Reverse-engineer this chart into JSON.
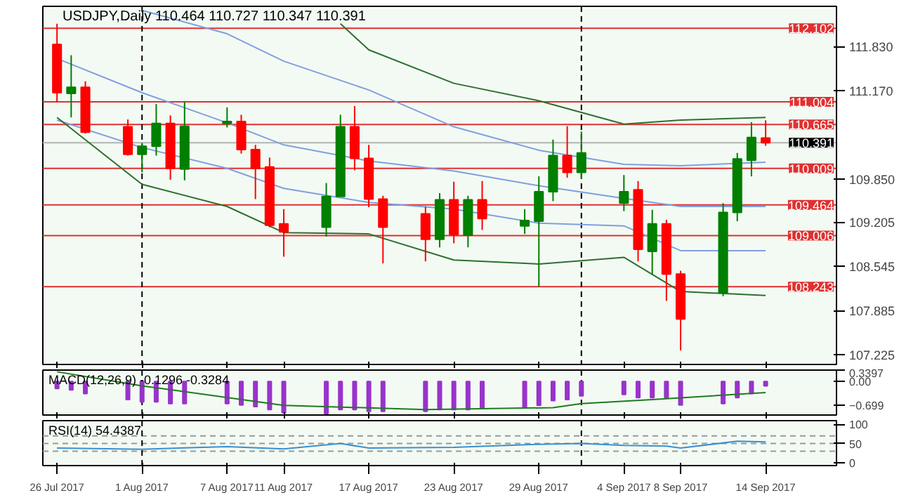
{
  "chart_data": [
    {
      "type": "candlestick",
      "title": "USDJPY,Daily 110.464 110.727 110.347 110.391",
      "x": [
        "2017-07-26",
        "2017-07-27",
        "2017-07-28",
        "2017-07-31",
        "2017-08-01",
        "2017-08-02",
        "2017-08-03",
        "2017-08-04",
        "2017-08-07",
        "2017-08-08",
        "2017-08-09",
        "2017-08-10",
        "2017-08-11",
        "2017-08-14",
        "2017-08-15",
        "2017-08-16",
        "2017-08-17",
        "2017-08-18",
        "2017-08-21",
        "2017-08-22",
        "2017-08-23",
        "2017-08-24",
        "2017-08-25",
        "2017-08-28",
        "2017-08-29",
        "2017-08-30",
        "2017-08-31",
        "2017-09-01",
        "2017-09-04",
        "2017-09-05",
        "2017-09-06",
        "2017-09-07",
        "2017-09-08",
        "2017-09-11",
        "2017-09-12",
        "2017-09-13",
        "2017-09-14"
      ],
      "ohlc": [
        [
          111.86,
          112.17,
          111.0,
          111.14
        ],
        [
          111.13,
          111.7,
          110.77,
          111.22
        ],
        [
          111.22,
          111.31,
          110.53,
          110.55
        ],
        [
          110.63,
          110.74,
          110.2,
          110.22
        ],
        [
          110.22,
          110.39,
          109.95,
          110.34
        ],
        [
          110.34,
          110.97,
          110.2,
          110.68
        ],
        [
          110.68,
          110.8,
          109.84,
          110.01
        ],
        [
          110.0,
          111.0,
          109.83,
          110.64
        ],
        [
          110.68,
          110.92,
          110.62,
          110.71
        ],
        [
          110.71,
          110.81,
          110.23,
          110.29
        ],
        [
          110.29,
          110.36,
          109.55,
          110.01
        ],
        [
          110.03,
          110.17,
          109.13,
          109.16
        ],
        [
          109.18,
          109.4,
          108.69,
          109.06
        ],
        [
          109.13,
          109.79,
          108.99,
          109.59
        ],
        [
          109.59,
          110.81,
          109.59,
          110.63
        ],
        [
          110.63,
          110.94,
          109.98,
          110.16
        ],
        [
          110.16,
          110.36,
          109.43,
          109.55
        ],
        [
          109.55,
          109.6,
          108.59,
          109.13
        ],
        [
          109.33,
          109.44,
          108.62,
          108.95
        ],
        [
          108.95,
          109.64,
          108.83,
          109.54
        ],
        [
          109.54,
          109.81,
          108.89,
          109.02
        ],
        [
          109.01,
          109.6,
          108.83,
          109.54
        ],
        [
          109.54,
          109.82,
          109.09,
          109.26
        ],
        [
          109.15,
          109.4,
          109.03,
          109.23
        ],
        [
          109.22,
          109.89,
          108.24,
          109.66
        ],
        [
          109.66,
          110.44,
          109.52,
          110.2
        ],
        [
          110.2,
          110.64,
          109.87,
          109.95
        ],
        [
          109.95,
          110.56,
          109.85,
          110.24
        ],
        [
          109.49,
          109.91,
          109.37,
          109.66
        ],
        [
          109.69,
          109.82,
          108.62,
          108.8
        ],
        [
          108.77,
          109.39,
          108.43,
          109.18
        ],
        [
          109.18,
          109.24,
          108.03,
          108.43
        ],
        [
          108.43,
          108.48,
          107.29,
          107.76
        ],
        [
          108.15,
          109.49,
          108.1,
          109.35
        ],
        [
          109.35,
          110.24,
          109.22,
          110.15
        ],
        [
          110.13,
          110.7,
          109.89,
          110.47
        ],
        [
          110.464,
          110.727,
          110.347,
          110.391
        ]
      ],
      "colors": [
        "#ff0000",
        "#007f00",
        "#ff0000",
        "#ff0000",
        "#007f00",
        "#007f00",
        "#ff0000",
        "#007f00",
        "#007f00",
        "#ff0000",
        "#ff0000",
        "#ff0000",
        "#ff0000",
        "#007f00",
        "#007f00",
        "#ff0000",
        "#ff0000",
        "#ff0000",
        "#ff0000",
        "#007f00",
        "#ff0000",
        "#007f00",
        "#ff0000",
        "#007f00",
        "#007f00",
        "#007f00",
        "#ff0000",
        "#007f00",
        "#007f00",
        "#ff0000",
        "#007f00",
        "#ff0000",
        "#ff0000",
        "#007f00",
        "#007f00",
        "#007f00",
        "#ff0000"
      ],
      "series": [
        {
          "type": "line",
          "color": "#2f6f2f",
          "x": [
            "2017-08-15",
            "2017-08-17",
            "2017-08-23",
            "2017-08-29",
            "2017-09-04",
            "2017-09-08",
            "2017-09-14"
          ],
          "values": [
            112.17,
            111.78,
            111.28,
            111.02,
            110.67,
            110.73,
            110.77
          ]
        },
        {
          "type": "line",
          "color": "#7f9fe0",
          "x": [
            "2017-08-01",
            "2017-08-07",
            "2017-08-11",
            "2017-08-17",
            "2017-08-23",
            "2017-08-29",
            "2017-09-04",
            "2017-09-08",
            "2017-09-14"
          ],
          "values": [
            112.37,
            112.02,
            111.61,
            111.18,
            110.63,
            110.28,
            110.07,
            110.05,
            110.1
          ]
        },
        {
          "type": "line",
          "color": "#7f9fe0",
          "x": [
            "2017-07-26",
            "2017-08-01",
            "2017-08-07",
            "2017-08-11",
            "2017-08-17",
            "2017-08-23",
            "2017-08-29",
            "2017-09-04",
            "2017-09-08",
            "2017-09-14"
          ],
          "values": [
            111.65,
            111.14,
            110.69,
            110.36,
            110.12,
            109.97,
            109.75,
            109.56,
            109.44,
            109.44
          ]
        },
        {
          "type": "line",
          "color": "#7f9fe0",
          "x": [
            "2017-07-26",
            "2017-08-01",
            "2017-08-07",
            "2017-08-11",
            "2017-08-17",
            "2017-08-23",
            "2017-08-29",
            "2017-09-04",
            "2017-09-08",
            "2017-09-14"
          ],
          "values": [
            110.73,
            110.32,
            110.01,
            109.71,
            109.5,
            109.4,
            109.19,
            109.15,
            108.78,
            108.78
          ]
        },
        {
          "type": "line",
          "color": "#2f6f2f",
          "x": [
            "2017-07-26",
            "2017-08-01",
            "2017-08-07",
            "2017-08-11",
            "2017-08-17",
            "2017-08-23",
            "2017-08-29",
            "2017-09-04",
            "2017-09-08",
            "2017-09-14"
          ],
          "values": [
            110.77,
            109.77,
            109.44,
            109.05,
            109.03,
            108.64,
            108.58,
            108.68,
            108.17,
            108.11
          ]
        }
      ],
      "ylim": [
        107.08,
        112.43
      ],
      "xlim": [
        "2017-07-25",
        "2017-09-19"
      ],
      "yticks": [
        {
          "value": 111.83,
          "label": "111.830"
        },
        {
          "value": 111.17,
          "label": "111.170"
        },
        {
          "value": 109.85,
          "label": "109.850"
        },
        {
          "value": 109.205,
          "label": "109.205"
        },
        {
          "value": 108.545,
          "label": "108.545"
        },
        {
          "value": 107.885,
          "label": "107.885"
        },
        {
          "value": 107.225,
          "label": "107.225"
        }
      ],
      "xticks": [
        {
          "value": "2017-07-26",
          "label": null
        },
        {
          "value": "2017-08-01",
          "label": null
        },
        {
          "value": "2017-08-07",
          "label": null
        },
        {
          "value": "2017-08-11",
          "label": null
        },
        {
          "value": "2017-08-17",
          "label": null
        },
        {
          "value": "2017-08-23",
          "label": null
        },
        {
          "value": "2017-08-29",
          "label": null
        },
        {
          "value": "2017-09-04",
          "label": null
        },
        {
          "value": "2017-09-08",
          "label": null
        },
        {
          "value": "2017-09-14",
          "label": null
        }
      ],
      "tick_labels": "y",
      "ref_lines": [
        {
          "axis": "y",
          "value": 112.102,
          "label": "112.102",
          "color": "#e03030"
        },
        {
          "axis": "y",
          "value": 111.004,
          "label": "111.004",
          "color": "#e03030"
        },
        {
          "axis": "y",
          "value": 110.665,
          "label": "110.665",
          "color": "#e03030"
        },
        {
          "axis": "y",
          "value": 110.391,
          "label": "110.391",
          "color": "#b4b4b4"
        },
        {
          "axis": "y",
          "value": 110.009,
          "label": "110.009",
          "color": "#e03030"
        },
        {
          "axis": "y",
          "value": 109.464,
          "label": "109.464",
          "color": "#e03030"
        },
        {
          "axis": "y",
          "value": 109.006,
          "label": "109.006",
          "color": "#e03030"
        },
        {
          "axis": "y",
          "value": 108.243,
          "label": "108.243",
          "color": "#e03030"
        },
        {
          "axis": "x",
          "value": "2017-08-01",
          "color": "#000000",
          "line_style": "dashed"
        },
        {
          "axis": "x",
          "value": "2017-09-01",
          "color": "#000000",
          "line_style": "dashed"
        }
      ]
    },
    {
      "type": "bar",
      "title": "MACD(12,26,9) -0.1296 -0.3284",
      "x": [
        "2017-07-26",
        "2017-07-27",
        "2017-07-28",
        "2017-07-31",
        "2017-08-01",
        "2017-08-02",
        "2017-08-03",
        "2017-08-04",
        "2017-08-07",
        "2017-08-08",
        "2017-08-09",
        "2017-08-10",
        "2017-08-11",
        "2017-08-14",
        "2017-08-15",
        "2017-08-16",
        "2017-08-17",
        "2017-08-18",
        "2017-08-21",
        "2017-08-22",
        "2017-08-23",
        "2017-08-24",
        "2017-08-25",
        "2017-08-28",
        "2017-08-29",
        "2017-08-30",
        "2017-08-31",
        "2017-09-01",
        "2017-09-04",
        "2017-09-05",
        "2017-09-06",
        "2017-09-07",
        "2017-09-08",
        "2017-09-11",
        "2017-09-12",
        "2017-09-13",
        "2017-09-14"
      ],
      "series": [
        {
          "type": "bar",
          "color": "#9933cc",
          "values": [
            -0.21,
            -0.25,
            -0.36,
            -0.54,
            -0.61,
            -0.61,
            -0.66,
            -0.66,
            -0.66,
            -0.7,
            -0.75,
            -0.84,
            -0.93,
            -0.96,
            -0.84,
            -0.84,
            -0.89,
            -0.89,
            -0.89,
            -0.84,
            -0.84,
            -0.84,
            -0.78,
            -0.78,
            -0.71,
            -0.57,
            -0.54,
            -0.43,
            -0.39,
            -0.48,
            -0.48,
            -0.48,
            -0.7,
            -0.66,
            -0.48,
            -0.36,
            -0.13
          ]
        },
        {
          "type": "line",
          "color": "#1f7a1f",
          "x": [
            "2017-07-26",
            "2017-08-01",
            "2017-08-11",
            "2017-08-21",
            "2017-08-30",
            "2017-09-01",
            "2017-09-06",
            "2017-09-14"
          ],
          "values": [
            0.29,
            -0.13,
            -0.71,
            -0.84,
            -0.78,
            -0.66,
            -0.54,
            -0.33
          ]
        }
      ],
      "ylim": [
        -1.0,
        0.3397
      ],
      "xlim": [
        "2017-07-25",
        "2017-09-19"
      ],
      "yticks": [
        {
          "value": 0.3397,
          "label": "0.3397"
        },
        {
          "value": 0,
          "label": "0.00"
        },
        -0.699
      ],
      "xticks": [
        {
          "value": "2017-07-26",
          "label": null
        },
        {
          "value": "2017-08-01",
          "label": null
        },
        {
          "value": "2017-08-07",
          "label": null
        },
        {
          "value": "2017-08-11",
          "label": null
        },
        {
          "value": "2017-08-17",
          "label": null
        },
        {
          "value": "2017-08-23",
          "label": null
        },
        {
          "value": "2017-08-29",
          "label": null
        },
        {
          "value": "2017-09-04",
          "label": null
        },
        {
          "value": "2017-09-08",
          "label": null
        },
        {
          "value": "2017-09-14",
          "label": null
        }
      ],
      "tick_labels": "y",
      "ref_lines": [
        {
          "axis": "x",
          "value": "2017-08-01",
          "color": "#000000",
          "line_style": "dashed"
        },
        {
          "axis": "x",
          "value": "2017-09-01",
          "color": "#000000",
          "line_style": "dashed"
        }
      ]
    },
    {
      "type": "line",
      "title": "RSI(14) 54.4387",
      "series": [
        {
          "color": "#3a8fd0",
          "x": [
            "2017-07-26",
            "2017-08-01",
            "2017-08-07",
            "2017-08-11",
            "2017-08-15",
            "2017-08-17",
            "2017-08-23",
            "2017-08-29",
            "2017-09-01",
            "2017-09-04",
            "2017-09-07",
            "2017-09-08",
            "2017-09-12",
            "2017-09-14"
          ],
          "values": [
            38,
            35,
            42,
            36,
            50,
            38,
            40,
            48,
            50,
            45,
            43,
            38,
            56,
            54.4387
          ]
        }
      ],
      "ylim": [
        -8,
        110
      ],
      "xlim": [
        "2017-07-25",
        "2017-09-19"
      ],
      "yticks": [
        100,
        50,
        0
      ],
      "xticks": [
        {
          "value": "2017-07-26",
          "label": "26 Jul 2017"
        },
        {
          "value": "2017-08-01",
          "label": "1 Aug 2017"
        },
        {
          "value": "2017-08-07",
          "label": "7 Aug 2017"
        },
        {
          "value": "2017-08-11",
          "label": "11 Aug 2017"
        },
        {
          "value": "2017-08-17",
          "label": "17 Aug 2017"
        },
        {
          "value": "2017-08-23",
          "label": "23 Aug 2017"
        },
        {
          "value": "2017-08-29",
          "label": "29 Aug 2017"
        },
        {
          "value": "2017-09-04",
          "label": "4 Sep 2017"
        },
        {
          "value": "2017-09-08",
          "label": "8 Sep 2017"
        },
        {
          "value": "2017-09-14",
          "label": "14 Sep 2017"
        }
      ],
      "ref_lines": [
        {
          "axis": "y",
          "value": 70,
          "color": "#999999",
          "line_style": "dashed"
        },
        {
          "axis": "y",
          "value": 50,
          "color": "#999999",
          "line_style": "dashed"
        },
        {
          "axis": "y",
          "value": 30,
          "color": "#999999",
          "line_style": "dashed"
        },
        {
          "axis": "x",
          "value": "2017-08-01",
          "color": "#000000",
          "line_style": "dashed"
        },
        {
          "axis": "x",
          "value": "2017-09-01",
          "color": "#000000",
          "line_style": "dashed"
        }
      ]
    }
  ]
}
